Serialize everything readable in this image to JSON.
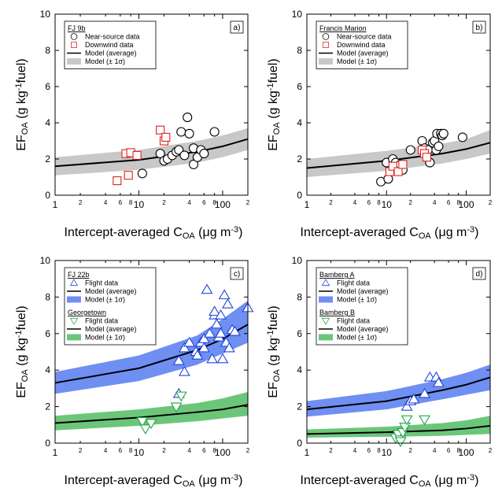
{
  "chart_data": [
    {
      "type": "scatter",
      "label": "a)",
      "xscale": "log",
      "xlim": [
        1,
        200
      ],
      "ylim": [
        0,
        10
      ],
      "xticks": [
        1,
        2,
        4,
        6,
        8,
        10,
        {
          "value": 20,
          "label": "2"
        },
        {
          "value": 40,
          "label": "4"
        },
        {
          "value": 60,
          "label": "6"
        },
        {
          "value": 80,
          "label": "8"
        },
        100,
        {
          "value": 200,
          "label": "2"
        }
      ],
      "yticks": [
        0,
        2,
        4,
        6,
        8,
        10
      ],
      "xlabel": [
        {
          "text": "Intercept-averaged C"
        },
        {
          "text": "OA",
          "shift": "sub"
        },
        {
          "text": " (μg m"
        },
        {
          "text": "-3",
          "shift": "sup"
        },
        {
          "text": ")"
        }
      ],
      "ylabel": [
        {
          "text": "EF"
        },
        {
          "text": "OA",
          "shift": "sub"
        },
        {
          "text": " (g kg"
        },
        {
          "text": "-1",
          "shift": "sup"
        },
        {
          "text": "fuel)"
        }
      ],
      "groups": [
        {
          "title": "FJ 9b",
          "series": [
            {
              "name": "Near-source data",
              "kind": "scatter",
              "marker": "circle",
              "color": "#000000",
              "x": [
                11,
                18,
                20,
                22,
                25,
                28,
                30,
                32,
                35,
                38,
                40,
                45,
                45,
                50,
                55,
                60,
                80
              ],
              "values": [
                1.2,
                2.3,
                1.9,
                2.0,
                2.2,
                2.4,
                2.5,
                3.5,
                2.2,
                4.3,
                3.4,
                1.7,
                2.6,
                2.1,
                2.5,
                2.3,
                3.5
              ]
            },
            {
              "name": "Downwind data",
              "kind": "scatter",
              "marker": "square",
              "color": "#e02020",
              "x": [
                5.5,
                7,
                7.5,
                8,
                9.5,
                18,
                20,
                21
              ],
              "values": [
                0.8,
                2.3,
                1.1,
                2.35,
                2.2,
                3.6,
                3.0,
                3.2
              ]
            },
            {
              "name": "Model (average)",
              "kind": "line",
              "color": "#000000",
              "x": [
                1,
                10,
                50,
                100,
                200
              ],
              "values": [
                1.6,
                1.95,
                2.4,
                2.7,
                3.1
              ]
            },
            {
              "name": "Model (± 1σ)",
              "kind": "band",
              "color": "#c8c8c8",
              "x": [
                1,
                10,
                50,
                100,
                200
              ],
              "lower": [
                1.1,
                1.4,
                1.8,
                2.1,
                2.5
              ],
              "upper": [
                2.1,
                2.5,
                3.0,
                3.3,
                3.7
              ]
            }
          ]
        }
      ]
    },
    {
      "type": "scatter",
      "label": "b)",
      "xscale": "log",
      "xlim": [
        1,
        200
      ],
      "ylim": [
        0,
        10
      ],
      "xticks": [
        1,
        2,
        4,
        6,
        8,
        10,
        {
          "value": 20,
          "label": "2"
        },
        {
          "value": 40,
          "label": "4"
        },
        {
          "value": 60,
          "label": "6"
        },
        {
          "value": 80,
          "label": "8"
        },
        100,
        {
          "value": 200,
          "label": "2"
        }
      ],
      "yticks": [
        0,
        2,
        4,
        6,
        8,
        10
      ],
      "xlabel": [
        {
          "text": "Intercept-averaged C"
        },
        {
          "text": "OA",
          "shift": "sub"
        },
        {
          "text": " (μg m"
        },
        {
          "text": "-3",
          "shift": "sup"
        },
        {
          "text": ")"
        }
      ],
      "ylabel": [
        {
          "text": "EF"
        },
        {
          "text": "OA",
          "shift": "sub"
        },
        {
          "text": " (g kg"
        },
        {
          "text": "-1",
          "shift": "sup"
        },
        {
          "text": "fuel)"
        }
      ],
      "groups": [
        {
          "title": "Francis Marion",
          "series": [
            {
              "name": "Near-source data",
              "kind": "scatter",
              "marker": "circle",
              "color": "#000000",
              "x": [
                8.5,
                10,
                10.5,
                12,
                13,
                15,
                16,
                20,
                28,
                30,
                33,
                35,
                38,
                40,
                42,
                43,
                45,
                48,
                50,
                52,
                90
              ],
              "values": [
                0.75,
                1.8,
                0.9,
                2.0,
                1.8,
                1.7,
                1.4,
                2.5,
                3.0,
                2.6,
                2.5,
                1.8,
                2.9,
                3.0,
                2.5,
                3.4,
                2.7,
                3.4,
                3.3,
                3.4,
                3.2
              ]
            },
            {
              "name": "Downwind data",
              "kind": "scatter",
              "marker": "square",
              "color": "#e02020",
              "x": [
                11,
                12,
                14,
                16,
                28,
                30,
                32
              ],
              "values": [
                1.3,
                1.6,
                1.3,
                1.7,
                2.5,
                2.3,
                2.1
              ]
            },
            {
              "name": "Model (average)",
              "kind": "line",
              "color": "#000000",
              "x": [
                1,
                10,
                50,
                100,
                200
              ],
              "values": [
                1.5,
                1.9,
                2.3,
                2.55,
                2.9
              ]
            },
            {
              "name": "Model (± 1σ)",
              "kind": "band",
              "color": "#c8c8c8",
              "x": [
                1,
                10,
                50,
                100,
                200
              ],
              "lower": [
                1.0,
                1.35,
                1.75,
                2.0,
                2.3
              ],
              "upper": [
                2.0,
                2.45,
                2.85,
                3.1,
                3.6
              ]
            }
          ]
        }
      ]
    },
    {
      "type": "scatter",
      "label": "c)",
      "xscale": "log",
      "xlim": [
        1,
        200
      ],
      "ylim": [
        0,
        10
      ],
      "xticks": [
        1,
        2,
        4,
        6,
        8,
        10,
        {
          "value": 20,
          "label": "2"
        },
        {
          "value": 40,
          "label": "4"
        },
        {
          "value": 60,
          "label": "6"
        },
        {
          "value": 80,
          "label": "8"
        },
        100,
        {
          "value": 200,
          "label": "2"
        }
      ],
      "yticks": [
        0,
        2,
        4,
        6,
        8,
        10
      ],
      "xlabel": [
        {
          "text": "Intercept-averaged C"
        },
        {
          "text": "OA",
          "shift": "sub"
        },
        {
          "text": " (μg m"
        },
        {
          "text": "-3",
          "shift": "sup"
        },
        {
          "text": ")"
        }
      ],
      "ylabel": [
        {
          "text": "EF"
        },
        {
          "text": "OA",
          "shift": "sub"
        },
        {
          "text": " (g kg"
        },
        {
          "text": "-1",
          "shift": "sup"
        },
        {
          "text": "fuel)"
        }
      ],
      "groups": [
        {
          "title": "FJ 22b",
          "series": [
            {
              "name": "Flight data",
              "kind": "scatter",
              "marker": "triangle-up",
              "color": "#2244dd",
              "x": [
                30,
                30,
                35,
                35,
                40,
                48,
                50,
                55,
                60,
                60,
                65,
                70,
                75,
                80,
                80,
                85,
                90,
                95,
                95,
                100,
                105,
                110,
                115,
                120,
                130,
                140,
                200
              ],
              "values": [
                2.7,
                4.5,
                3.9,
                5.2,
                5.5,
                5.0,
                4.8,
                5.5,
                5.7,
                5.2,
                8.4,
                6.0,
                4.6,
                7.0,
                7.2,
                6.5,
                5.8,
                6.0,
                7.0,
                4.6,
                8.1,
                5.5,
                7.6,
                5.2,
                6.2,
                6.1,
                7.4
              ]
            },
            {
              "name": "Model (average)",
              "kind": "line",
              "color": "#000000",
              "x": [
                1,
                10,
                50,
                100,
                200
              ],
              "values": [
                3.3,
                4.1,
                5.1,
                5.7,
                6.5
              ]
            },
            {
              "name": "Model (± 1σ)",
              "kind": "band",
              "color": "#6f8ff2",
              "x": [
                1,
                10,
                50,
                100,
                200
              ],
              "lower": [
                2.7,
                3.4,
                4.3,
                4.9,
                5.5
              ],
              "upper": [
                3.9,
                4.8,
                5.9,
                6.8,
                7.8
              ]
            }
          ]
        },
        {
          "title": "Georgetown",
          "series": [
            {
              "name": "Flight data",
              "kind": "scatter",
              "marker": "triangle-down",
              "color": "#22a84a",
              "x": [
                11,
                12,
                14,
                28,
                32
              ],
              "values": [
                1.2,
                0.8,
                1.1,
                2.0,
                2.6
              ]
            },
            {
              "name": "Model (average)",
              "kind": "line",
              "color": "#000000",
              "x": [
                1,
                10,
                50,
                100,
                200
              ],
              "values": [
                1.1,
                1.4,
                1.7,
                1.85,
                2.1
              ]
            },
            {
              "name": "Model (± 1σ)",
              "kind": "band",
              "color": "#6cc67a",
              "x": [
                1,
                10,
                50,
                100,
                200
              ],
              "lower": [
                0.7,
                0.95,
                1.2,
                1.35,
                1.5
              ],
              "upper": [
                1.5,
                1.85,
                2.2,
                2.45,
                2.8
              ]
            }
          ]
        }
      ]
    },
    {
      "type": "scatter",
      "label": "d)",
      "xscale": "log",
      "xlim": [
        1,
        200
      ],
      "ylim": [
        0,
        10
      ],
      "xticks": [
        1,
        2,
        4,
        6,
        8,
        10,
        {
          "value": 20,
          "label": "2"
        },
        {
          "value": 40,
          "label": "4"
        },
        {
          "value": 60,
          "label": "6"
        },
        {
          "value": 80,
          "label": "8"
        },
        100,
        {
          "value": 200,
          "label": "2"
        }
      ],
      "yticks": [
        0,
        2,
        4,
        6,
        8,
        10
      ],
      "xlabel": [
        {
          "text": "Intercept-averaged C"
        },
        {
          "text": "OA",
          "shift": "sub"
        },
        {
          "text": " (μg m"
        },
        {
          "text": "-3",
          "shift": "sup"
        },
        {
          "text": ")"
        }
      ],
      "ylabel": [
        {
          "text": "EF"
        },
        {
          "text": "OA",
          "shift": "sub"
        },
        {
          "text": " (g kg"
        },
        {
          "text": "-1",
          "shift": "sup"
        },
        {
          "text": "fuel)"
        }
      ],
      "groups": [
        {
          "title": "Bamberg A",
          "series": [
            {
              "name": "Flight data",
              "kind": "scatter",
              "marker": "triangle-up",
              "color": "#2244dd",
              "x": [
                18,
                20,
                22,
                30,
                35,
                42,
                45
              ],
              "values": [
                2.0,
                2.3,
                2.4,
                2.7,
                3.6,
                3.6,
                3.3
              ]
            },
            {
              "name": "Model (average)",
              "kind": "line",
              "color": "#000000",
              "x": [
                1,
                10,
                50,
                100,
                200
              ],
              "values": [
                1.85,
                2.3,
                2.9,
                3.2,
                3.6
              ]
            },
            {
              "name": "Model (± 1σ)",
              "kind": "band",
              "color": "#6f8ff2",
              "x": [
                1,
                10,
                50,
                100,
                200
              ],
              "lower": [
                1.45,
                1.85,
                2.4,
                2.65,
                2.9
              ],
              "upper": [
                2.3,
                2.85,
                3.5,
                3.85,
                4.3
              ]
            }
          ]
        },
        {
          "title": "Bamberg B",
          "series": [
            {
              "name": "Flight data",
              "kind": "scatter",
              "marker": "triangle-down",
              "color": "#22a84a",
              "x": [
                13,
                14,
                15,
                15,
                16,
                17,
                18,
                30
              ],
              "values": [
                0.3,
                0.5,
                0.2,
                0.1,
                0.6,
                0.9,
                1.3,
                1.3
              ]
            },
            {
              "name": "Model (average)",
              "kind": "line",
              "color": "#000000",
              "x": [
                1,
                10,
                50,
                100,
                200
              ],
              "values": [
                0.5,
                0.6,
                0.7,
                0.8,
                0.95
              ]
            },
            {
              "name": "Model (± 1σ)",
              "kind": "band",
              "color": "#6cc67a",
              "x": [
                1,
                10,
                50,
                100,
                200
              ],
              "lower": [
                0.3,
                0.35,
                0.4,
                0.45,
                0.5
              ],
              "upper": [
                0.75,
                0.9,
                1.1,
                1.25,
                1.5
              ]
            }
          ]
        }
      ]
    }
  ]
}
